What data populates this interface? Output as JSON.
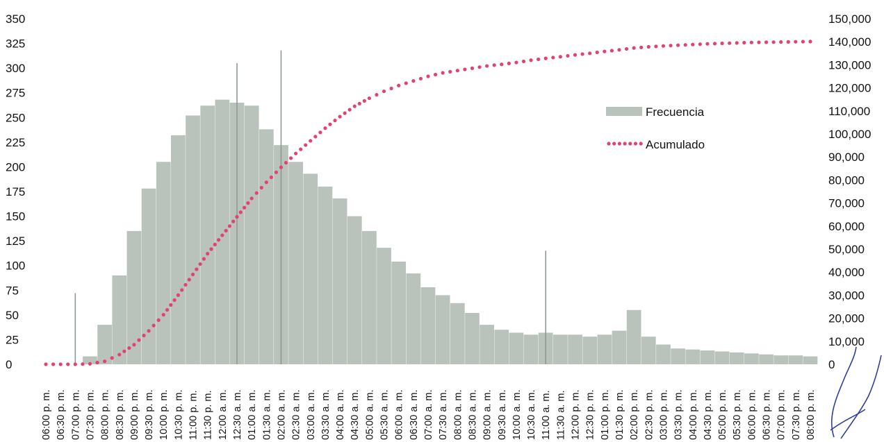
{
  "chart_data": {
    "type": "bar",
    "title": "",
    "xlabel": "",
    "ylabel": "",
    "y2label": "",
    "ylim": [
      0,
      350
    ],
    "y2lim": [
      0,
      150000
    ],
    "yticks": [
      "0",
      "25",
      "50",
      "75",
      "100",
      "125",
      "150",
      "175",
      "200",
      "225",
      "250",
      "275",
      "300",
      "325",
      "350"
    ],
    "y2ticks": [
      "0",
      "10,000",
      "20,000",
      "30,000",
      "40,000",
      "50,000",
      "60,000",
      "70,000",
      "80,000",
      "90,000",
      "100,000",
      "110,000",
      "120,000",
      "130,000",
      "140,000",
      "150,000"
    ],
    "categories": [
      "06:00 p. m.",
      "06:30 p. m.",
      "07:00 p. m.",
      "07:30 p. m.",
      "08:00 p. m.",
      "08:30 p. m.",
      "09:00 p. m.",
      "09:30 p. m.",
      "10:00 p. m.",
      "10:30 p. m.",
      "11:00 p. m.",
      "11:30 p. m.",
      "12:00 a. m.",
      "12:30 a. m.",
      "01:00 a. m.",
      "01:30 a. m.",
      "02:00 a. m.",
      "02:30 a. m.",
      "03:00 a. m.",
      "03:30 a. m.",
      "04:00 a. m.",
      "04:30 a. m.",
      "05:00 a. m.",
      "05:30 a. m.",
      "06:00 a. m.",
      "06:30 a. m.",
      "07:00 a. m.",
      "07:30 a. m.",
      "08:00 a. m.",
      "08:30 a. m.",
      "09:00 a. m.",
      "09:30 a. m.",
      "10:00 a. m.",
      "10:30 a. m.",
      "11:00 a. m.",
      "11:30 a. m.",
      "12:00 p. m.",
      "12:30 p. m.",
      "01:00 p. m.",
      "01:30 p. m.",
      "02:00 p. m.",
      "02:30 p. m.",
      "03:00 p. m.",
      "03:30 p. m.",
      "04:00 p. m.",
      "04:30 p. m.",
      "05:00 p. m.",
      "05:30 p. m.",
      "06:00 p. m.",
      "06:30 p. m.",
      "07:00 p. m.",
      "07:30 p. m.",
      "08:00 p. m."
    ],
    "series": [
      {
        "name": "Frecuencia",
        "axis": "left",
        "style": "bar",
        "color": "#b9c2bb",
        "values": [
          0,
          0,
          0,
          8,
          40,
          90,
          135,
          178,
          205,
          232,
          252,
          262,
          268,
          265,
          262,
          238,
          222,
          205,
          193,
          180,
          168,
          150,
          135,
          118,
          104,
          92,
          78,
          70,
          62,
          52,
          40,
          35,
          32,
          30,
          32,
          30,
          30,
          28,
          30,
          34,
          55,
          28,
          20,
          16,
          15,
          14,
          13,
          12,
          11,
          10,
          9,
          9,
          8
        ]
      },
      {
        "name": "Acumulado",
        "axis": "right",
        "style": "dotted-line",
        "color": "#e2426f",
        "values": [
          0,
          0,
          0,
          200,
          1300,
          4200,
          8500,
          14500,
          21500,
          30000,
          39000,
          48000,
          56000,
          64000,
          72000,
          79000,
          85500,
          91500,
          97000,
          102500,
          107500,
          112000,
          115500,
          118500,
          121000,
          123000,
          125000,
          126500,
          127500,
          128500,
          129500,
          130200,
          131000,
          132000,
          132800,
          133500,
          134300,
          135000,
          135800,
          136500,
          137300,
          137800,
          138200,
          138500,
          138800,
          139100,
          139300,
          139500,
          139700,
          139800,
          139900,
          140000,
          140100
        ]
      }
    ],
    "spikes": [
      {
        "x": "02:00 a. m.",
        "value": 318
      },
      {
        "x": "12:30 a. m.",
        "value": 305
      },
      {
        "x": "11:00 a. m.",
        "value": 115
      },
      {
        "x": "07:00 p. m.",
        "value": 72
      }
    ],
    "legend": {
      "position": "top-right",
      "entries": [
        "Frecuencia",
        "Acumulado"
      ]
    }
  }
}
